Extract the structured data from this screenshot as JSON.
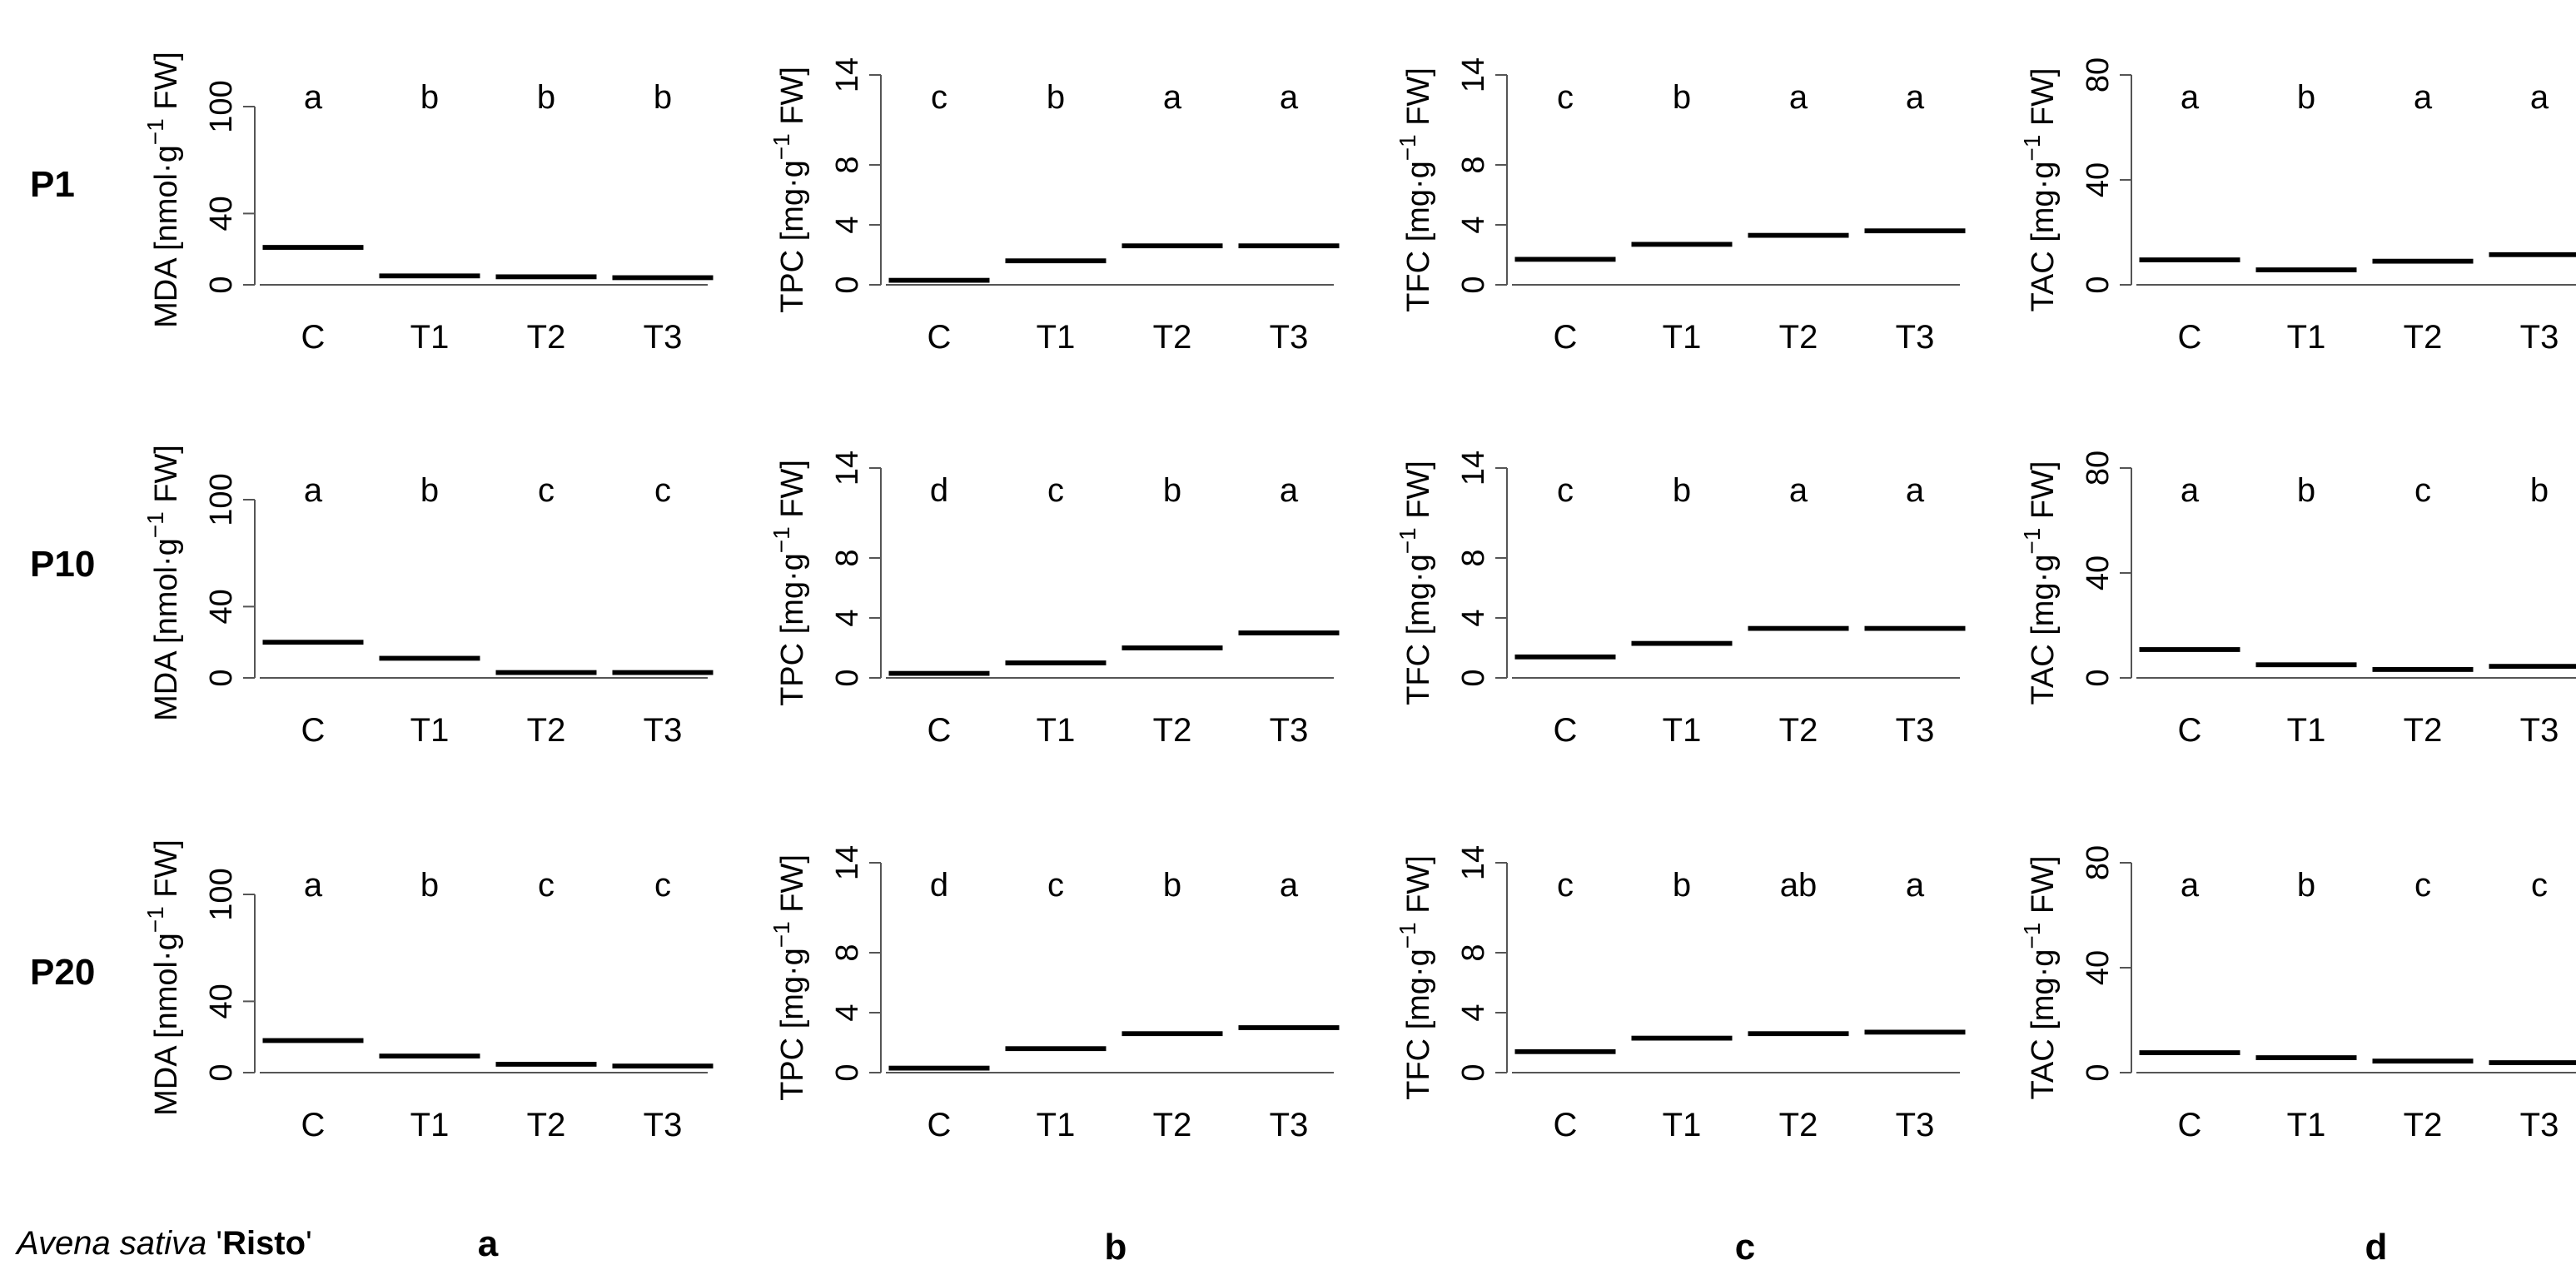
{
  "figure": {
    "rows": [
      "P1",
      "P10",
      "P20"
    ],
    "panels": [
      "a",
      "b",
      "c",
      "d"
    ],
    "caption": [
      "Avena sativa",
      " '",
      "Risto",
      "'"
    ]
  },
  "chart_data": [
    {
      "type": "box",
      "ylabel": [
        "MDA [nmol·g",
        "−1",
        " FW]"
      ],
      "categories": [
        "C",
        "T1",
        "T2",
        "T3"
      ],
      "values": [
        21,
        5,
        4.5,
        4
      ],
      "letters": [
        "a",
        "b",
        "b",
        "b"
      ],
      "color": "#000000",
      "ylim": [
        0,
        100
      ],
      "yticks": [
        0,
        40,
        100
      ]
    },
    {
      "type": "box",
      "ylabel": [
        "TPC  [mg·g",
        "−1",
        " FW]"
      ],
      "categories": [
        "C",
        "T1",
        "T2",
        "T3"
      ],
      "values": [
        0.3,
        1.6,
        2.6,
        2.6
      ],
      "letters": [
        "c",
        "b",
        "a",
        "a"
      ],
      "color": "#000000",
      "ylim": [
        0,
        14
      ],
      "yticks": [
        0,
        4,
        8,
        14
      ]
    },
    {
      "type": "box",
      "ylabel": [
        "TFC  [mg·g",
        "−1",
        " FW]"
      ],
      "categories": [
        "C",
        "T1",
        "T2",
        "T3"
      ],
      "values": [
        1.7,
        2.7,
        3.3,
        3.6
      ],
      "letters": [
        "c",
        "b",
        "a",
        "a"
      ],
      "color": "#000000",
      "ylim": [
        0,
        14
      ],
      "yticks": [
        0,
        4,
        8,
        14
      ]
    },
    {
      "type": "box",
      "ylabel": [
        "TAC  [mg·g",
        "−1",
        " FW]"
      ],
      "categories": [
        "C",
        "T1",
        "T2",
        "T3"
      ],
      "values": [
        9.5,
        5.7,
        9,
        11.5
      ],
      "letters": [
        "a",
        "b",
        "a",
        "a"
      ],
      "color": "#000000",
      "ylim": [
        0,
        80
      ],
      "yticks": [
        0,
        40,
        80
      ]
    },
    {
      "type": "box",
      "ylabel": [
        "MDA [nmol·g",
        "−1",
        " FW]"
      ],
      "categories": [
        "C",
        "T1",
        "T2",
        "T3"
      ],
      "values": [
        20,
        11,
        3,
        3
      ],
      "letters": [
        "a",
        "b",
        "c",
        "c"
      ],
      "color": "#000000",
      "ylim": [
        0,
        100
      ],
      "yticks": [
        0,
        40,
        100
      ]
    },
    {
      "type": "box",
      "ylabel": [
        "TPC  [mg·g",
        "−1",
        " FW]"
      ],
      "categories": [
        "C",
        "T1",
        "T2",
        "T3"
      ],
      "values": [
        0.3,
        1.0,
        2.0,
        3.0
      ],
      "letters": [
        "d",
        "c",
        "b",
        "a"
      ],
      "color": "#000000",
      "ylim": [
        0,
        14
      ],
      "yticks": [
        0,
        4,
        8,
        14
      ]
    },
    {
      "type": "box",
      "ylabel": [
        "TFC  [mg·g",
        "−1",
        " FW]"
      ],
      "categories": [
        "C",
        "T1",
        "T2",
        "T3"
      ],
      "values": [
        1.4,
        2.3,
        3.3,
        3.3
      ],
      "letters": [
        "c",
        "b",
        "a",
        "a"
      ],
      "color": "#000000",
      "ylim": [
        0,
        14
      ],
      "yticks": [
        0,
        4,
        8,
        14
      ]
    },
    {
      "type": "box",
      "ylabel": [
        "TAC  [mg·g",
        "−1",
        " FW]"
      ],
      "categories": [
        "C",
        "T1",
        "T2",
        "T3"
      ],
      "values": [
        10.8,
        5,
        3.2,
        4.4
      ],
      "letters": [
        "a",
        "b",
        "c",
        "b"
      ],
      "color": "#000000",
      "ylim": [
        0,
        80
      ],
      "yticks": [
        0,
        40,
        80
      ]
    },
    {
      "type": "box",
      "ylabel": [
        "MDA [nmol·g",
        "−1",
        " FW]"
      ],
      "categories": [
        "C",
        "T1",
        "T2",
        "T3"
      ],
      "values": [
        18,
        9.3,
        4.7,
        3.7
      ],
      "letters": [
        "a",
        "b",
        "c",
        "c"
      ],
      "color": "#000000",
      "ylim": [
        0,
        100
      ],
      "yticks": [
        0,
        40,
        100
      ]
    },
    {
      "type": "box",
      "ylabel": [
        "TPC  [mg·g",
        "−1",
        " FW]"
      ],
      "categories": [
        "C",
        "T1",
        "T2",
        "T3"
      ],
      "values": [
        0.3,
        1.6,
        2.6,
        3.0
      ],
      "letters": [
        "d",
        "c",
        "b",
        "a"
      ],
      "color": "#000000",
      "ylim": [
        0,
        14
      ],
      "yticks": [
        0,
        4,
        8,
        14
      ]
    },
    {
      "type": "box",
      "ylabel": [
        "TFC  [mg·g",
        "−1",
        " FW]"
      ],
      "categories": [
        "C",
        "T1",
        "T2",
        "T3"
      ],
      "values": [
        1.4,
        2.3,
        2.6,
        2.7
      ],
      "letters": [
        "c",
        "b",
        "ab",
        "a"
      ],
      "color": "#000000",
      "ylim": [
        0,
        14
      ],
      "yticks": [
        0,
        4,
        8,
        14
      ]
    },
    {
      "type": "box",
      "ylabel": [
        "TAC  [mg·g",
        "−1",
        " FW]"
      ],
      "categories": [
        "C",
        "T1",
        "T2",
        "T3"
      ],
      "values": [
        7.6,
        5.7,
        4.4,
        3.8
      ],
      "letters": [
        "a",
        "b",
        "c",
        "c"
      ],
      "color": "#000000",
      "ylim": [
        0,
        80
      ],
      "yticks": [
        0,
        40,
        80
      ]
    }
  ]
}
